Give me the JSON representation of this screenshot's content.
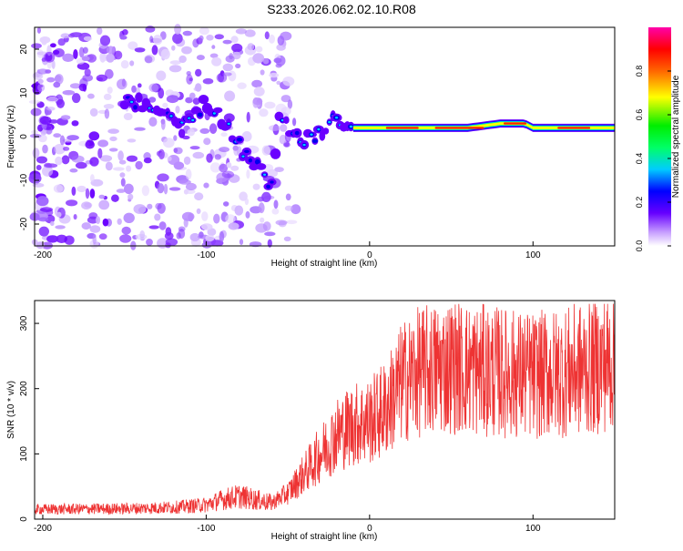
{
  "title": "S233.2026.062.02.10.R08",
  "chart_data": [
    {
      "type": "heatmap",
      "xlabel": "Height of straight line (km)",
      "ylabel": "Frequency (Hz)",
      "xlim": [
        -205,
        150
      ],
      "ylim": [
        -25,
        25
      ],
      "xticks": [
        -200,
        -100,
        0,
        100
      ],
      "yticks": [
        -20,
        -10,
        0,
        10,
        20
      ],
      "colorbar": {
        "label": "Normalized spectral amplitude",
        "range": [
          0,
          1
        ],
        "ticks": [
          "0.0",
          "0.2",
          "0.4",
          "0.6",
          "0.8"
        ]
      },
      "ridge": {
        "x": [
          -150,
          -130,
          -110,
          -100,
          -90,
          -80,
          -70,
          -60,
          -55,
          -50,
          -40,
          -30,
          -20,
          -10,
          -5,
          0,
          10,
          20,
          40,
          60,
          80,
          90,
          95,
          100,
          110,
          120,
          130,
          140,
          150
        ],
        "y": [
          8,
          7,
          3,
          8,
          4,
          -2,
          -6,
          -12,
          5,
          2,
          -1,
          1,
          4,
          2,
          2,
          2,
          2,
          2,
          2,
          2,
          3,
          3,
          3,
          2,
          2,
          2,
          2,
          2,
          2
        ]
      }
    },
    {
      "type": "line",
      "xlabel": "Height of straight line (km)",
      "ylabel": "SNR (10 * v/v)",
      "xlim": [
        -205,
        150
      ],
      "ylim": [
        0,
        335
      ],
      "xticks": [
        -200,
        -100,
        0,
        100
      ],
      "yticks": [
        0,
        100,
        200,
        300
      ],
      "color": "#ee3333",
      "envelope": {
        "x": [
          -205,
          -150,
          -120,
          -100,
          -90,
          -80,
          -70,
          -60,
          -50,
          -40,
          -30,
          -20,
          -10,
          0,
          10,
          20,
          30,
          40,
          50,
          60,
          80,
          100,
          120,
          140,
          150
        ],
        "y": [
          15,
          16,
          18,
          22,
          30,
          35,
          30,
          25,
          40,
          70,
          100,
          130,
          145,
          150,
          170,
          210,
          225,
          230,
          235,
          230,
          225,
          220,
          225,
          235,
          245
        ]
      }
    }
  ]
}
